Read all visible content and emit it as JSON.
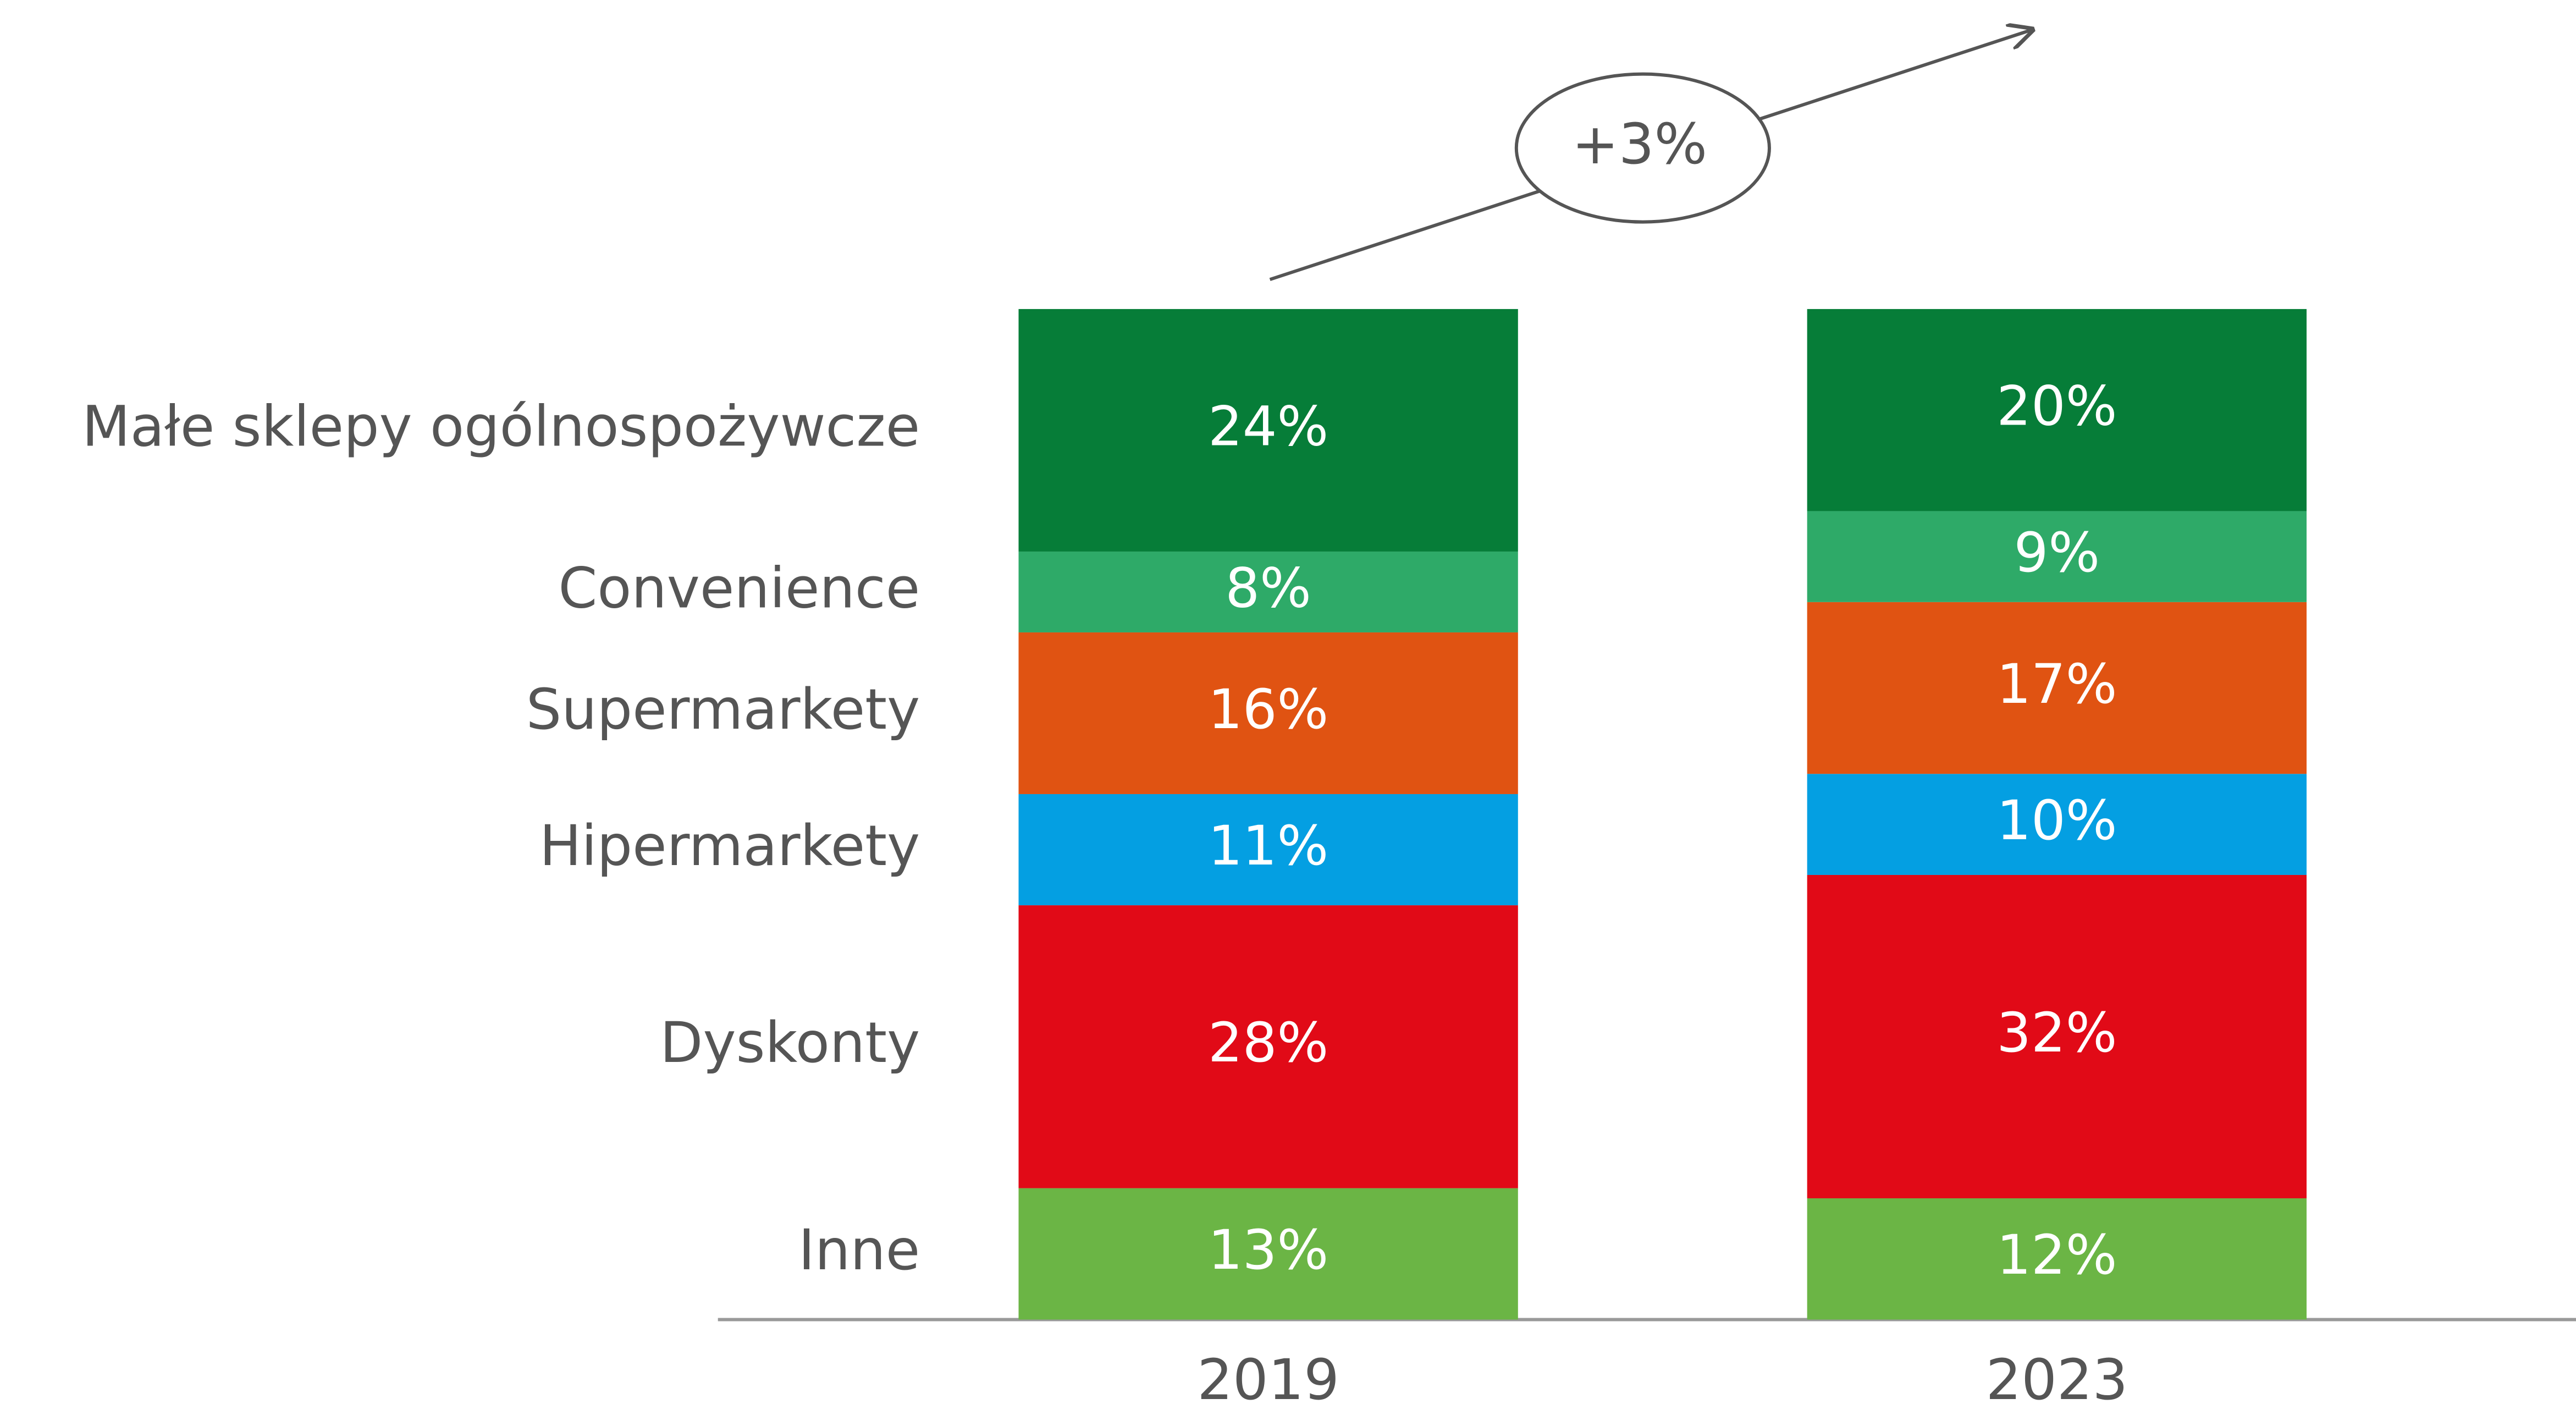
{
  "chart_data": {
    "type": "stacked_bar",
    "categories": [
      "2019",
      "2023"
    ],
    "annotation": "+3%",
    "ylim": [
      0,
      100
    ],
    "series": [
      {
        "name": "Inne",
        "color": "#6bb545",
        "values": [
          13,
          12
        ],
        "value_labels": [
          "13%",
          "12%"
        ]
      },
      {
        "name": "Dyskonty",
        "color": "#e10a17",
        "values": [
          28,
          32
        ],
        "value_labels": [
          "28%",
          "32%"
        ]
      },
      {
        "name": "Hipermarkety",
        "color": "#049fe2",
        "values": [
          11,
          10
        ],
        "value_labels": [
          "11%",
          "10%"
        ]
      },
      {
        "name": "Supermarkety",
        "color": "#e05312",
        "values": [
          16,
          17
        ],
        "value_labels": [
          "16%",
          "17%"
        ]
      },
      {
        "name": "Convenience",
        "color": "#2eaa68",
        "values": [
          8,
          9
        ],
        "value_labels": [
          "8%",
          "9%"
        ]
      },
      {
        "name": "Małe sklepy ogólnospożywcze",
        "color": "#067d38",
        "values": [
          24,
          20
        ],
        "value_labels": [
          "24%",
          "20%"
        ]
      }
    ]
  }
}
